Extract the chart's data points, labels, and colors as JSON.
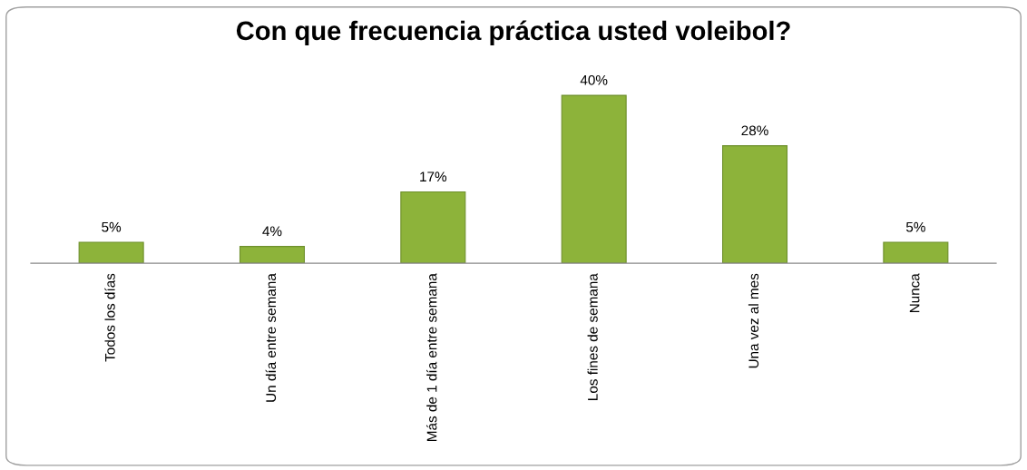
{
  "chart_data": {
    "type": "bar",
    "title": "Con que frecuencia práctica usted voleibol?",
    "categories": [
      "Todos los días",
      "Un día entre semana",
      "Más de 1 día entre semana",
      "Los fines de semana",
      "Una vez al mes",
      "Nunca"
    ],
    "values": [
      5,
      4,
      17,
      40,
      28,
      5
    ],
    "value_labels": [
      "5%",
      "4%",
      "17%",
      "40%",
      "28%",
      "5%"
    ],
    "color": "#8db33a",
    "grid": false
  }
}
